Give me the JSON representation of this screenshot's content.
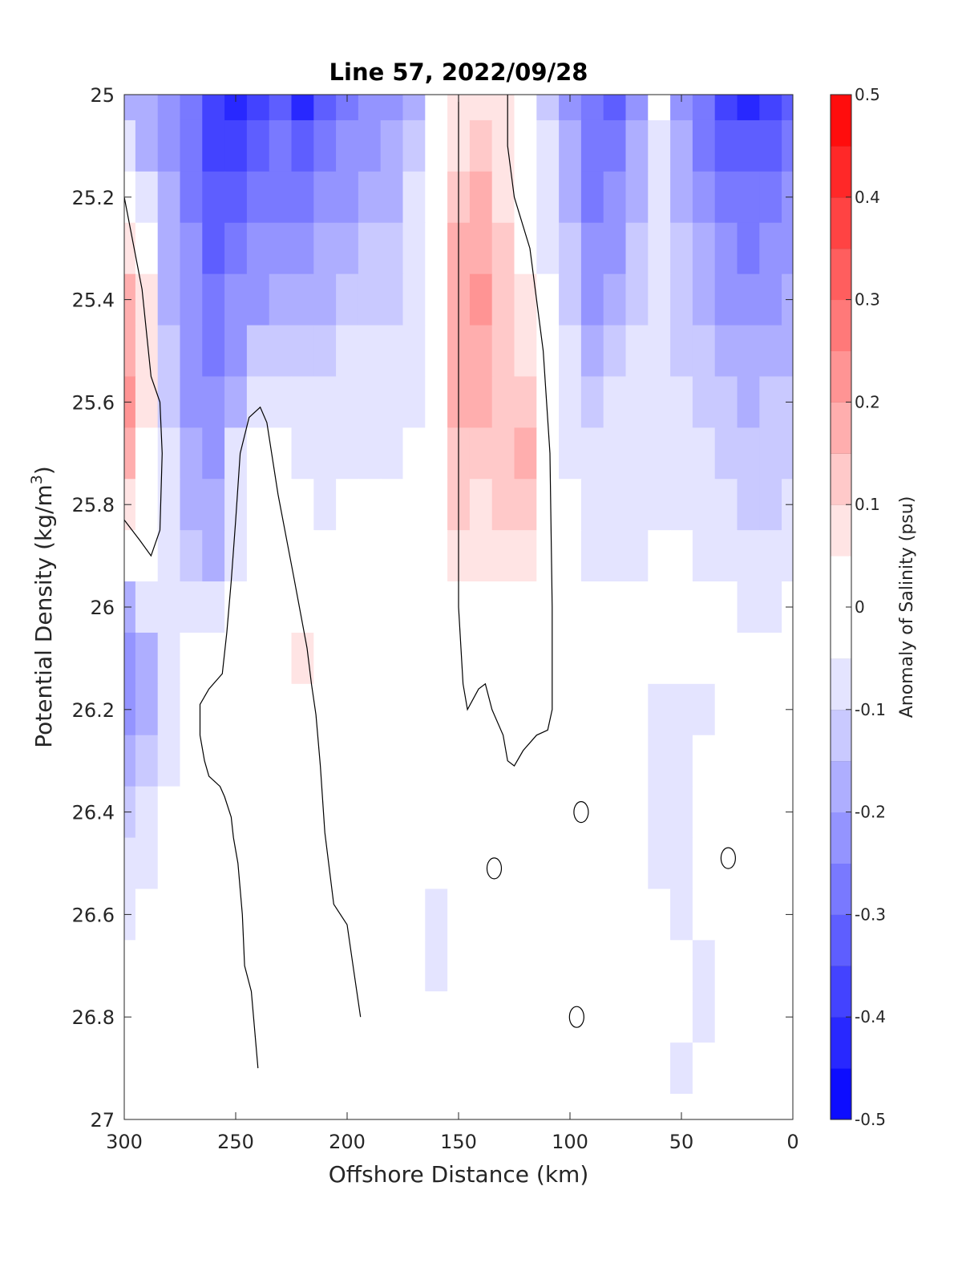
{
  "chart_data": {
    "type": "contour",
    "title": "Line 57, 2022/09/28",
    "xlabel": "Offshore Distance (km)",
    "ylabel": "Potential Density (kg/m",
    "ylabel_sup": "3",
    "ylabel_close": ")",
    "xlim": [
      300,
      0
    ],
    "ylim": [
      25,
      27
    ],
    "y_reversed": true,
    "x_ticks": [
      "300",
      "250",
      "200",
      "150",
      "100",
      "50",
      "0"
    ],
    "y_ticks": [
      "25",
      "25.2",
      "25.4",
      "25.6",
      "25.8",
      "26",
      "26.2",
      "26.4",
      "26.6",
      "26.8",
      "27"
    ],
    "colorbar": {
      "label": "Anomaly of Salinity (psu)",
      "range": [
        -0.5,
        0.5
      ],
      "step": 0.05,
      "tick_labels": [
        "0.5",
        "0.4",
        "0.3",
        "0.2",
        "0.1",
        "0",
        "-0.1",
        "-0.2",
        "-0.3",
        "-0.4",
        "-0.5"
      ]
    },
    "stations_km": [
      300,
      290,
      280,
      270,
      260,
      250,
      240,
      230,
      220,
      210,
      200,
      190,
      180,
      170,
      160,
      150,
      140,
      130,
      120,
      110,
      100,
      90,
      80,
      70,
      60,
      50,
      40,
      30,
      20,
      10,
      0
    ],
    "density_levels": [
      25.0,
      25.1,
      25.2,
      25.3,
      25.4,
      25.5,
      25.6,
      25.7,
      25.8,
      25.9,
      26.0,
      26.1,
      26.2,
      26.3,
      26.4,
      26.5,
      26.6,
      26.7,
      26.8,
      26.9,
      27.0
    ],
    "salinity_anomaly": [
      [
        -0.15,
        -0.18,
        -0.22,
        -0.3,
        -0.38,
        -0.42,
        -0.38,
        -0.35,
        -0.4,
        -0.32,
        -0.28,
        -0.22,
        -0.2,
        -0.15,
        -0.02,
        0.06,
        0.08,
        0.05,
        0.01,
        -0.12,
        -0.2,
        -0.3,
        -0.32,
        -0.2,
        -0.05,
        -0.2,
        -0.3,
        -0.38,
        -0.4,
        -0.38,
        -0.35
      ],
      [
        -0.08,
        -0.15,
        -0.2,
        -0.28,
        -0.36,
        -0.38,
        -0.34,
        -0.3,
        -0.35,
        -0.28,
        -0.24,
        -0.2,
        -0.18,
        -0.12,
        -0.02,
        0.08,
        0.12,
        0.08,
        0.02,
        -0.1,
        -0.18,
        -0.28,
        -0.28,
        -0.18,
        -0.07,
        -0.18,
        -0.26,
        -0.32,
        -0.35,
        -0.32,
        -0.3
      ],
      [
        0.02,
        -0.06,
        -0.18,
        -0.26,
        -0.35,
        -0.34,
        -0.3,
        -0.26,
        -0.3,
        -0.22,
        -0.2,
        -0.18,
        -0.16,
        -0.1,
        -0.02,
        0.12,
        0.16,
        0.1,
        0.03,
        -0.08,
        -0.16,
        -0.26,
        -0.24,
        -0.16,
        -0.08,
        -0.15,
        -0.22,
        -0.28,
        -0.3,
        -0.28,
        -0.25
      ],
      [
        0.1,
        0.02,
        -0.16,
        -0.25,
        -0.33,
        -0.3,
        -0.25,
        -0.2,
        -0.24,
        -0.18,
        -0.16,
        -0.14,
        -0.14,
        -0.1,
        -0.02,
        0.16,
        0.2,
        0.12,
        0.04,
        -0.06,
        -0.14,
        -0.24,
        -0.2,
        -0.14,
        -0.1,
        -0.14,
        -0.18,
        -0.24,
        -0.26,
        -0.24,
        -0.22
      ],
      [
        0.15,
        0.06,
        -0.15,
        -0.24,
        -0.3,
        -0.25,
        -0.2,
        -0.16,
        -0.18,
        -0.15,
        -0.13,
        -0.12,
        -0.12,
        -0.08,
        -0.02,
        0.18,
        0.22,
        0.13,
        0.05,
        -0.05,
        -0.12,
        -0.2,
        -0.17,
        -0.12,
        -0.1,
        -0.13,
        -0.16,
        -0.2,
        -0.22,
        -0.2,
        -0.18
      ],
      [
        0.2,
        0.08,
        -0.14,
        -0.22,
        -0.28,
        -0.2,
        -0.14,
        -0.12,
        -0.14,
        -0.12,
        -0.1,
        -0.1,
        -0.1,
        -0.08,
        -0.02,
        0.2,
        0.2,
        0.12,
        0.08,
        -0.04,
        -0.1,
        -0.16,
        -0.14,
        -0.1,
        -0.08,
        -0.12,
        -0.14,
        -0.16,
        -0.18,
        -0.16,
        -0.15
      ],
      [
        0.22,
        0.06,
        -0.12,
        -0.2,
        -0.25,
        -0.15,
        -0.06,
        -0.08,
        -0.1,
        -0.1,
        -0.08,
        -0.08,
        -0.08,
        -0.06,
        -0.02,
        0.18,
        0.16,
        0.14,
        0.12,
        -0.02,
        -0.08,
        -0.12,
        -0.1,
        -0.06,
        -0.07,
        -0.1,
        -0.12,
        -0.14,
        -0.15,
        -0.14,
        -0.12
      ],
      [
        0.15,
        0.04,
        -0.1,
        -0.18,
        -0.22,
        -0.1,
        0.02,
        -0.04,
        -0.06,
        -0.08,
        -0.06,
        -0.06,
        -0.06,
        -0.04,
        -0.01,
        0.14,
        0.12,
        0.14,
        0.16,
        0.0,
        -0.06,
        -0.1,
        -0.08,
        -0.06,
        -0.06,
        -0.08,
        -0.1,
        -0.12,
        -0.13,
        -0.12,
        -0.11
      ],
      [
        0.08,
        0.0,
        -0.08,
        -0.16,
        -0.18,
        -0.08,
        0.03,
        0.0,
        -0.02,
        -0.06,
        -0.04,
        -0.04,
        -0.03,
        -0.02,
        0.0,
        0.12,
        0.1,
        0.12,
        0.12,
        0.02,
        -0.04,
        -0.08,
        -0.08,
        -0.07,
        -0.06,
        -0.06,
        -0.08,
        -0.1,
        -0.12,
        -0.11,
        -0.1
      ],
      [
        -0.04,
        -0.02,
        -0.08,
        -0.14,
        -0.15,
        -0.06,
        0.03,
        0.02,
        0.0,
        -0.03,
        -0.02,
        0.0,
        0.0,
        0.0,
        0.0,
        0.08,
        0.08,
        0.08,
        0.08,
        0.02,
        -0.02,
        -0.06,
        -0.07,
        -0.06,
        -0.05,
        -0.05,
        -0.06,
        -0.08,
        -0.1,
        -0.09,
        -0.08
      ],
      [
        -0.16,
        -0.1,
        -0.08,
        -0.1,
        -0.08,
        -0.03,
        0.02,
        0.02,
        0.03,
        0.0,
        0.0,
        0.0,
        0.0,
        0.0,
        0.0,
        0.03,
        0.03,
        0.04,
        0.04,
        0.02,
        0.0,
        -0.03,
        -0.04,
        -0.04,
        -0.04,
        -0.03,
        -0.04,
        -0.05,
        -0.06,
        -0.06,
        -0.05
      ],
      [
        -0.22,
        -0.15,
        -0.07,
        -0.04,
        -0.02,
        0.0,
        0.02,
        0.02,
        0.06,
        0.0,
        0.0,
        0.0,
        0.0,
        0.0,
        0.0,
        0.0,
        0.0,
        0.0,
        0.0,
        0.0,
        0.0,
        0.0,
        0.0,
        0.0,
        -0.02,
        -0.03,
        -0.03,
        -0.02,
        -0.02,
        -0.02,
        -0.02
      ],
      [
        -0.2,
        -0.15,
        -0.07,
        -0.02,
        0.0,
        0.0,
        0.0,
        0.02,
        0.02,
        0.0,
        0.0,
        0.0,
        0.0,
        0.0,
        0.0,
        0.0,
        0.0,
        0.0,
        0.0,
        0.0,
        0.0,
        0.0,
        0.0,
        -0.03,
        -0.06,
        -0.08,
        -0.06,
        -0.02,
        0.0,
        0.0,
        0.0
      ],
      [
        -0.16,
        -0.13,
        -0.06,
        0.0,
        0.0,
        0.04,
        0.0,
        0.02,
        0.02,
        0.0,
        0.0,
        0.0,
        0.0,
        0.0,
        0.0,
        0.0,
        0.0,
        0.0,
        0.0,
        0.0,
        0.0,
        0.0,
        0.0,
        -0.03,
        -0.06,
        -0.07,
        -0.05,
        -0.02,
        0.0,
        0.0,
        0.0
      ],
      [
        -0.13,
        -0.1,
        -0.05,
        0.0,
        0.0,
        0.0,
        0.0,
        0.02,
        0.02,
        0.0,
        0.0,
        0.0,
        0.0,
        0.0,
        0.0,
        0.0,
        0.0,
        0.0,
        0.0,
        0.0,
        0.0,
        0.0,
        0.0,
        -0.02,
        -0.06,
        -0.07,
        -0.05,
        -0.02,
        0.0,
        0.0,
        0.0
      ],
      [
        -0.1,
        -0.08,
        -0.03,
        0.0,
        0.0,
        0.0,
        0.0,
        0.02,
        0.02,
        0.0,
        0.0,
        0.0,
        0.0,
        -0.01,
        -0.02,
        0.0,
        0.0,
        0.0,
        0.0,
        0.0,
        0.0,
        0.0,
        0.0,
        -0.02,
        -0.06,
        -0.07,
        -0.05,
        -0.02,
        0.0,
        0.0,
        0.0
      ],
      [
        -0.07,
        -0.05,
        -0.02,
        0.0,
        0.0,
        0.0,
        0.0,
        0.02,
        0.02,
        0.0,
        0.0,
        0.0,
        0.0,
        -0.04,
        -0.07,
        -0.05,
        -0.01,
        0.0,
        0.0,
        0.0,
        0.0,
        0.0,
        0.0,
        -0.01,
        -0.05,
        -0.06,
        -0.05,
        -0.02,
        0.0,
        0.0,
        0.0
      ],
      [
        -0.02,
        -0.02,
        0.0,
        0.0,
        0.0,
        0.0,
        0.0,
        0.02,
        0.02,
        0.0,
        0.0,
        0.0,
        0.0,
        -0.04,
        -0.07,
        -0.05,
        -0.01,
        0.0,
        0.0,
        0.0,
        0.0,
        0.0,
        0.0,
        0.0,
        -0.02,
        -0.04,
        -0.06,
        -0.04,
        0.0,
        0.0,
        0.0
      ],
      [
        0.0,
        0.0,
        0.0,
        0.0,
        0.0,
        0.0,
        0.0,
        0.02,
        0.02,
        0.0,
        0.0,
        0.0,
        0.0,
        -0.02,
        -0.04,
        -0.02,
        0.0,
        0.0,
        0.0,
        0.0,
        0.0,
        0.0,
        0.0,
        0.0,
        -0.01,
        -0.03,
        -0.06,
        -0.03,
        0.0,
        0.0,
        0.0
      ],
      [
        0.0,
        0.0,
        0.0,
        0.0,
        0.0,
        0.0,
        0.0,
        0.0,
        0.0,
        0.0,
        0.0,
        0.0,
        0.0,
        0.0,
        0.0,
        0.0,
        0.0,
        0.0,
        0.0,
        0.0,
        0.0,
        0.0,
        0.0,
        0.0,
        0.0,
        -0.06,
        0.0,
        0.0,
        0.0,
        0.0,
        0.0
      ],
      [
        0.0,
        0.0,
        0.0,
        0.0,
        0.0,
        0.0,
        0.0,
        0.0,
        0.0,
        0.0,
        0.0,
        0.0,
        0.0,
        0.0,
        0.0,
        0.0,
        0.0,
        0.0,
        0.0,
        0.0,
        0.0,
        0.0,
        0.0,
        0.0,
        0.0,
        0.0,
        0.0,
        0.0,
        0.0,
        0.0,
        0.0
      ]
    ],
    "zero_contours": [
      [
        [
          300,
          25.2
        ],
        [
          292,
          25.38
        ],
        [
          288,
          25.55
        ],
        [
          284,
          25.6
        ],
        [
          283,
          25.7
        ],
        [
          284,
          25.85
        ],
        [
          288,
          25.9
        ],
        [
          293,
          25.87
        ],
        [
          300,
          25.83
        ]
      ],
      [
        [
          150,
          25.0
        ],
        [
          150,
          26.0
        ],
        [
          148,
          26.15
        ],
        [
          146,
          26.2
        ],
        [
          141,
          26.16
        ],
        [
          138,
          26.15
        ],
        [
          135,
          26.2
        ],
        [
          130,
          26.25
        ],
        [
          128,
          26.3
        ],
        [
          125,
          26.31
        ],
        [
          121,
          26.28
        ],
        [
          115,
          26.25
        ],
        [
          110,
          26.24
        ],
        [
          108,
          26.2
        ],
        [
          108,
          26.0
        ],
        [
          109,
          25.7
        ],
        [
          112,
          25.5
        ],
        [
          118,
          25.3
        ],
        [
          125,
          25.2
        ],
        [
          128,
          25.1
        ],
        [
          128,
          25.0
        ]
      ],
      [
        [
          240,
          26.9
        ],
        [
          243,
          26.75
        ],
        [
          246,
          26.7
        ],
        [
          247,
          26.6
        ],
        [
          249,
          26.5
        ],
        [
          251,
          26.45
        ],
        [
          252,
          26.41
        ],
        [
          255,
          26.37
        ],
        [
          257,
          26.35
        ],
        [
          262,
          26.33
        ],
        [
          264,
          26.3
        ],
        [
          266,
          26.25
        ],
        [
          266,
          26.19
        ],
        [
          262,
          26.16
        ],
        [
          256,
          26.13
        ],
        [
          254,
          26.05
        ],
        [
          252,
          25.95
        ],
        [
          250,
          25.83
        ],
        [
          248,
          25.7
        ],
        [
          244,
          25.63
        ],
        [
          239,
          25.61
        ],
        [
          236,
          25.64
        ],
        [
          231,
          25.78
        ],
        [
          224,
          25.94
        ],
        [
          218,
          26.08
        ],
        [
          216,
          26.15
        ],
        [
          214,
          26.21
        ],
        [
          212,
          26.31
        ],
        [
          210,
          26.44
        ],
        [
          206,
          26.58
        ],
        [
          200,
          26.62
        ],
        [
          197,
          26.71
        ],
        [
          194,
          26.8
        ]
      ]
    ],
    "zero_contour_islands": [
      [
        95,
        26.4
      ],
      [
        134,
        26.51
      ],
      [
        97,
        26.8
      ],
      [
        29,
        26.49
      ]
    ]
  }
}
